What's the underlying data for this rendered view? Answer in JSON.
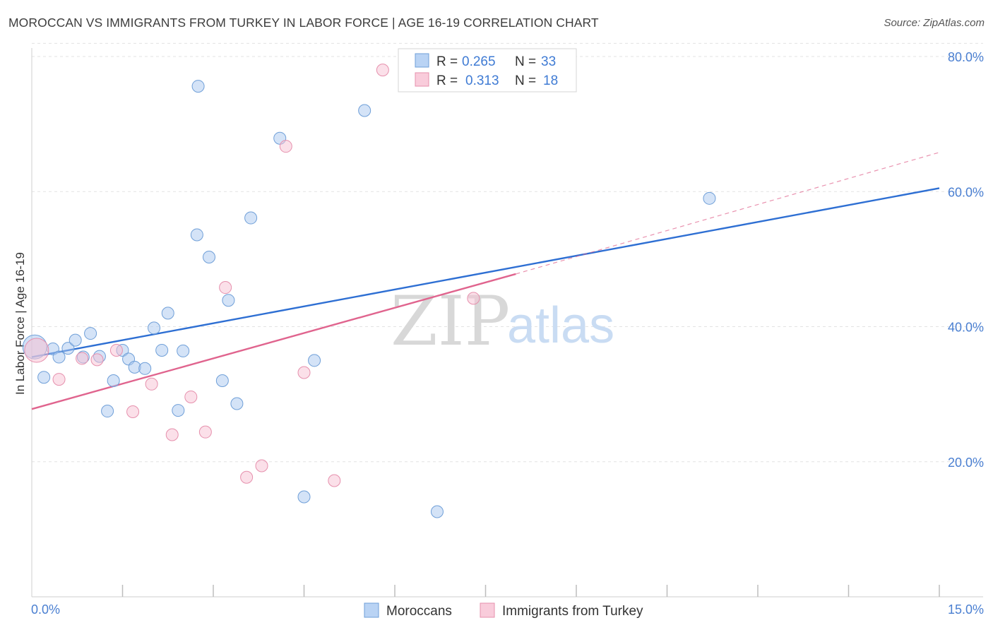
{
  "header": {
    "title": "MOROCCAN VS IMMIGRANTS FROM TURKEY IN LABOR FORCE | AGE 16-19 CORRELATION CHART",
    "source": "Source: ZipAtlas.com"
  },
  "watermark": {
    "zip": "ZIP",
    "atlas": "atlas"
  },
  "chart_data": {
    "type": "scatter",
    "title": "MOROCCAN VS IMMIGRANTS FROM TURKEY IN LABOR FORCE | AGE 16-19 CORRELATION CHART",
    "xlabel": "",
    "ylabel": "In Labor Force | Age 16-19",
    "xlim": [
      0,
      15
    ],
    "ylim": [
      0,
      82
    ],
    "x_tick_labels": {
      "min": "0.0%",
      "max": "15.0%"
    },
    "y_ticks": [
      {
        "value": 20,
        "label": "20.0%"
      },
      {
        "value": 40,
        "label": "40.0%"
      },
      {
        "value": 60,
        "label": "60.0%"
      },
      {
        "value": 80,
        "label": "80.0%"
      }
    ],
    "legend_stats": [
      {
        "r_label": "R =",
        "r_value": "0.265",
        "n_label": "N =",
        "n_value": "33"
      },
      {
        "r_label": "R =",
        "r_value": "0.313",
        "n_label": "N =",
        "n_value": "18"
      }
    ],
    "series": [
      {
        "name": "Moroccans",
        "color": "#a9c8f0",
        "stroke": "#6f9fd8",
        "trend_color": "#2e6fd3",
        "trend": {
          "x0": 0,
          "y0": 35.5,
          "x1": 15,
          "y1": 60.5
        },
        "points": [
          {
            "x": 0.05,
            "y": 37.0,
            "big": true
          },
          {
            "x": 0.2,
            "y": 32.5
          },
          {
            "x": 0.35,
            "y": 36.7
          },
          {
            "x": 0.45,
            "y": 35.5
          },
          {
            "x": 0.6,
            "y": 36.8
          },
          {
            "x": 0.72,
            "y": 38.0
          },
          {
            "x": 0.85,
            "y": 35.5
          },
          {
            "x": 0.97,
            "y": 39.0
          },
          {
            "x": 1.12,
            "y": 35.6
          },
          {
            "x": 1.25,
            "y": 27.5
          },
          {
            "x": 1.35,
            "y": 32.0
          },
          {
            "x": 1.5,
            "y": 36.5
          },
          {
            "x": 1.6,
            "y": 35.2
          },
          {
            "x": 1.7,
            "y": 34.0
          },
          {
            "x": 1.87,
            "y": 33.8
          },
          {
            "x": 2.02,
            "y": 39.8
          },
          {
            "x": 2.15,
            "y": 36.5
          },
          {
            "x": 2.25,
            "y": 42.0
          },
          {
            "x": 2.42,
            "y": 27.6
          },
          {
            "x": 2.5,
            "y": 36.4
          },
          {
            "x": 2.73,
            "y": 53.6
          },
          {
            "x": 2.75,
            "y": 75.6
          },
          {
            "x": 2.93,
            "y": 50.3
          },
          {
            "x": 3.15,
            "y": 32.0
          },
          {
            "x": 3.25,
            "y": 43.9
          },
          {
            "x": 3.39,
            "y": 28.6
          },
          {
            "x": 3.62,
            "y": 56.1
          },
          {
            "x": 4.1,
            "y": 67.9
          },
          {
            "x": 4.5,
            "y": 14.8
          },
          {
            "x": 4.67,
            "y": 35.0
          },
          {
            "x": 5.5,
            "y": 72.0
          },
          {
            "x": 6.7,
            "y": 12.6
          },
          {
            "x": 11.2,
            "y": 59.0
          }
        ]
      },
      {
        "name": "Immigrants from Turkey",
        "color": "#f8c2d3",
        "stroke": "#e690ad",
        "trend_color": "#e0648e",
        "trend": {
          "x0": 0,
          "y0": 27.8,
          "x1": 8.0,
          "y1": 47.8
        },
        "trend_dashed": {
          "x0": 8.0,
          "y0": 47.8,
          "x1": 15,
          "y1": 65.8
        },
        "points": [
          {
            "x": 0.08,
            "y": 36.5,
            "big": true
          },
          {
            "x": 0.45,
            "y": 32.2
          },
          {
            "x": 0.83,
            "y": 35.3
          },
          {
            "x": 1.08,
            "y": 35.1
          },
          {
            "x": 1.4,
            "y": 36.5
          },
          {
            "x": 1.67,
            "y": 27.4
          },
          {
            "x": 1.98,
            "y": 31.5
          },
          {
            "x": 2.32,
            "y": 24.0
          },
          {
            "x": 2.63,
            "y": 29.6
          },
          {
            "x": 2.87,
            "y": 24.4
          },
          {
            "x": 3.2,
            "y": 45.8
          },
          {
            "x": 3.55,
            "y": 17.7
          },
          {
            "x": 3.8,
            "y": 19.4
          },
          {
            "x": 4.2,
            "y": 66.7
          },
          {
            "x": 4.5,
            "y": 33.2
          },
          {
            "x": 5.0,
            "y": 17.2
          },
          {
            "x": 5.8,
            "y": 78.0
          },
          {
            "x": 7.3,
            "y": 44.2
          }
        ]
      }
    ]
  }
}
